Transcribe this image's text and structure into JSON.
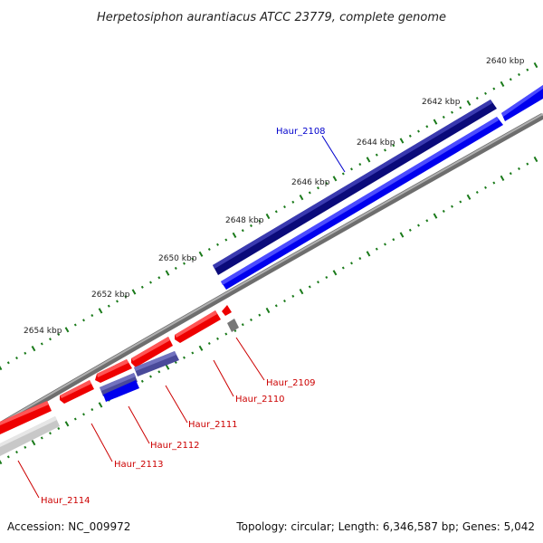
{
  "title": "Herpetosiphon aurantiacus ATCC 23779, complete genome",
  "footer": {
    "accession": "Accession: NC_009972",
    "summary": "Topology: circular; Length: 6,346,587 bp; Genes: 5,042"
  },
  "colors": {
    "forward_cds": "#0000ee",
    "forward_dark": "#0a0a7a",
    "reverse_cds": "#ee0000",
    "reverse_purple": "#4a4a9a",
    "backbone": "#8c8c8c",
    "tick": "#1a7a1a",
    "gene_label_blue": "#0000cc",
    "gene_label_red": "#cc0000",
    "grey_feature": "#777777",
    "light_grey_feature": "#c8c8c8"
  },
  "kbp_labels": [
    "2640 kbp",
    "2642 kbp",
    "2644 kbp",
    "2646 kbp",
    "2648 kbp",
    "2650 kbp",
    "2652 kbp",
    "2654 kbp"
  ],
  "gene_labels": [
    {
      "id": "haur-2108",
      "text": "Haur_2108",
      "color": "#0000cc"
    },
    {
      "id": "haur-2109",
      "text": "Haur_2109",
      "color": "#cc0000"
    },
    {
      "id": "haur-2110",
      "text": "Haur_2110",
      "color": "#cc0000"
    },
    {
      "id": "haur-2111",
      "text": "Haur_2111",
      "color": "#cc0000"
    },
    {
      "id": "haur-2112",
      "text": "Haur_2112",
      "color": "#cc0000"
    },
    {
      "id": "haur-2113",
      "text": "Haur_2113",
      "color": "#cc0000"
    },
    {
      "id": "haur-2114",
      "text": "Haur_2114",
      "color": "#cc0000"
    }
  ]
}
